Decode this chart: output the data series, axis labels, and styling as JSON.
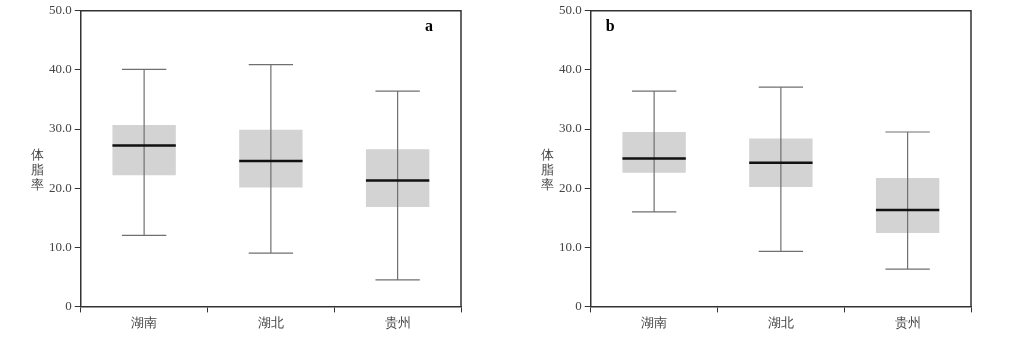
{
  "chart_data": [
    {
      "type": "box",
      "ylabel": "体脂率",
      "annotations": [
        "a"
      ],
      "categories": [
        "湖南",
        "湖北",
        "贵州"
      ],
      "series": [
        {
          "color": "#d3d3d3",
          "boxes": [
            {
              "low": 12.0,
              "q1": 22.2,
              "median": 27.2,
              "q3": 30.7,
              "high": 40.1
            },
            {
              "low": 9.0,
              "q1": 20.1,
              "median": 24.6,
              "q3": 29.9,
              "high": 40.9
            },
            {
              "low": 4.5,
              "q1": 16.8,
              "median": 21.3,
              "q3": 26.6,
              "high": 36.4
            }
          ]
        }
      ],
      "ylim": [
        0,
        50
      ],
      "yticks": [
        {
          "value": 0,
          "label": "0"
        },
        {
          "value": 10,
          "label": "10.0"
        },
        {
          "value": 20,
          "label": "20.0"
        },
        {
          "value": 30,
          "label": "30.0"
        },
        {
          "value": 40,
          "label": "40.0"
        },
        {
          "value": 50,
          "label": "50.0"
        }
      ],
      "grid": false,
      "legend": false
    },
    {
      "type": "box",
      "ylabel": "体脂率",
      "annotations": [
        "b"
      ],
      "categories": [
        "湖南",
        "湖北",
        "贵州"
      ],
      "series": [
        {
          "color": "#d3d3d3",
          "boxes": [
            {
              "low": 16.0,
              "q1": 22.6,
              "median": 25.0,
              "q3": 29.5,
              "high": 36.4
            },
            {
              "low": 9.3,
              "q1": 20.2,
              "median": 24.3,
              "q3": 28.4,
              "high": 37.1
            },
            {
              "low": 6.3,
              "q1": 12.4,
              "median": 16.3,
              "q3": 21.7,
              "high": 29.5
            }
          ]
        }
      ],
      "ylim": [
        0,
        50
      ],
      "yticks": [
        {
          "value": 0,
          "label": "0"
        },
        {
          "value": 10,
          "label": "10.0"
        },
        {
          "value": 20,
          "label": "20.0"
        },
        {
          "value": 30,
          "label": "30.0"
        },
        {
          "value": 40,
          "label": "40.0"
        },
        {
          "value": 50,
          "label": "50.0"
        }
      ],
      "grid": false,
      "legend": false
    }
  ]
}
